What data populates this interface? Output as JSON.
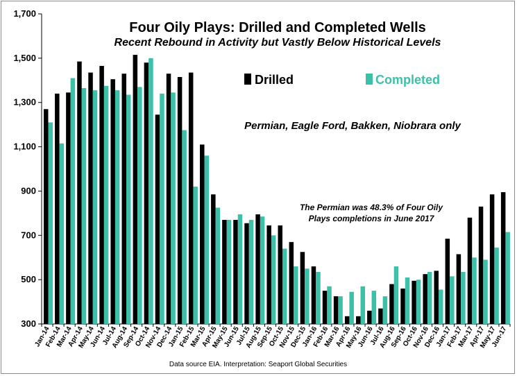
{
  "chart_data": {
    "type": "bar",
    "title": "Four Oily Plays: Drilled and Completed Wells",
    "subtitle": "Recent Rebound in Activity but Vastly Below Historical Levels",
    "categories": [
      "Jan-14",
      "Feb-14",
      "Mar-14",
      "Apr-14",
      "May-14",
      "Jun-14",
      "Jul-14",
      "Aug-14",
      "Sep-14",
      "Oct-14",
      "Nov-14",
      "Dec-14",
      "Jan-15",
      "Feb-15",
      "Mar-15",
      "Apr-15",
      "May-15",
      "Jun-15",
      "Jul-15",
      "Aug-15",
      "Sep-15",
      "Oct-15",
      "Nov-15",
      "Dec-15",
      "Jan-16",
      "Feb-16",
      "Mar-16",
      "Apr-16",
      "May-16",
      "Jun-16",
      "Jul-16",
      "Aug-16",
      "Sep-16",
      "Oct-16",
      "Nov-16",
      "Dec-16",
      "Jan-17",
      "Feb-17",
      "Mar-17",
      "Apr-17",
      "May-17",
      "Jun-17"
    ],
    "series": [
      {
        "name": "Drilled",
        "color": "#000000",
        "values": [
          1270,
          1340,
          1345,
          1485,
          1435,
          1465,
          1405,
          1430,
          1515,
          1480,
          1245,
          1430,
          1415,
          1435,
          1110,
          885,
          770,
          770,
          755,
          795,
          745,
          745,
          670,
          625,
          560,
          450,
          425,
          335,
          335,
          360,
          370,
          480,
          460,
          495,
          525,
          540,
          685,
          615,
          780,
          830,
          885,
          895
        ]
      },
      {
        "name": "Completed",
        "color": "#3cc1a8",
        "values": [
          1210,
          1115,
          1410,
          1365,
          1355,
          1375,
          1355,
          1335,
          1370,
          1500,
          1340,
          1345,
          1175,
          920,
          1060,
          825,
          770,
          795,
          770,
          785,
          700,
          640,
          560,
          550,
          535,
          470,
          425,
          445,
          470,
          450,
          425,
          560,
          510,
          500,
          535,
          455,
          515,
          535,
          600,
          590,
          645,
          715
        ]
      }
    ],
    "ylim": [
      300,
      1700
    ],
    "yticks": [
      300,
      500,
      700,
      900,
      1100,
      1300,
      1500,
      1700
    ],
    "ytick_labels": [
      "300",
      "500",
      "700",
      "900",
      "1,100",
      "1,300",
      "1,500",
      "1,700"
    ],
    "xlabel": "",
    "ylabel": "",
    "grid": false,
    "legend_position": "top-right",
    "annotations": {
      "scope": "Permian, Eagle Ford, Bakken, Niobrara only",
      "note_line1": "The Permian was 48.3% of Four Oily",
      "note_line2": "Plays completions in June 2017"
    },
    "source": "Data source EIA. Interpretation: Seaport Global Securities"
  }
}
